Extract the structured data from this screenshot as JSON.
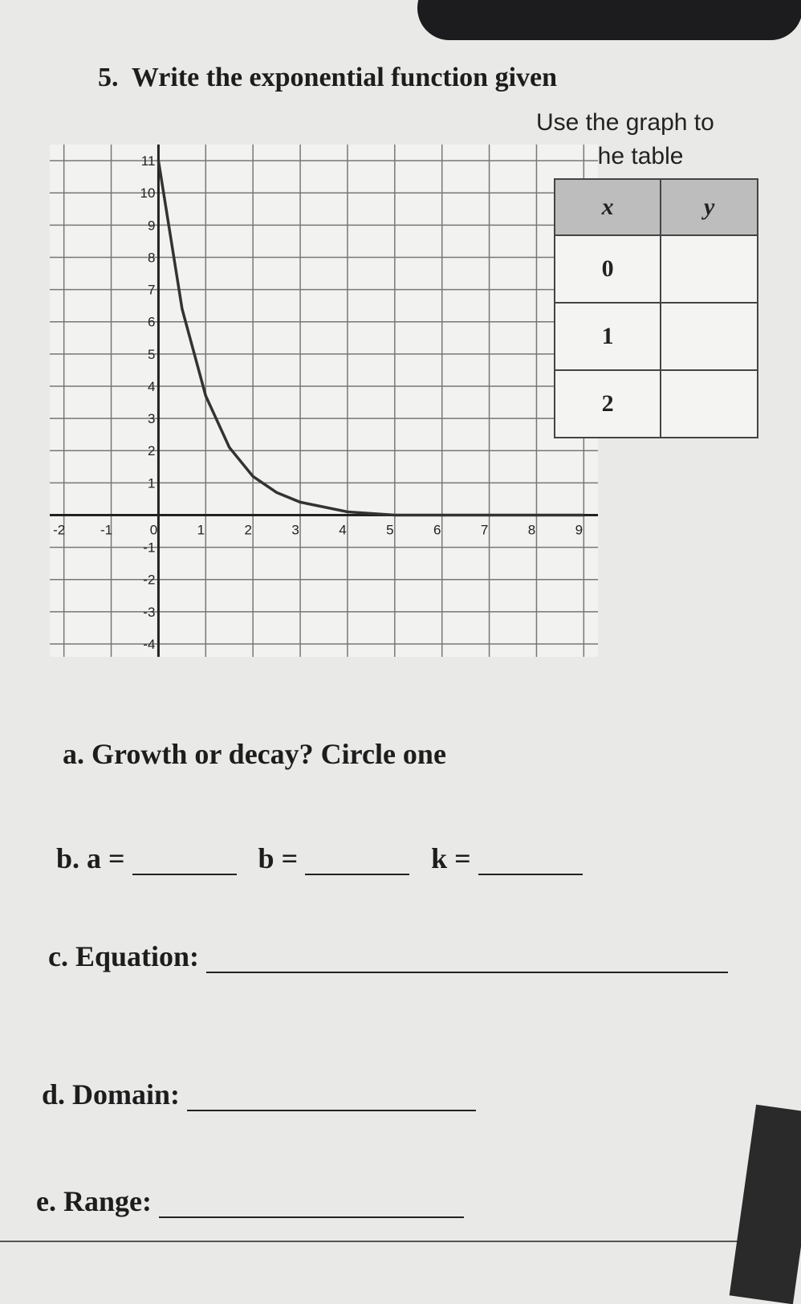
{
  "question": {
    "number": "5.",
    "text": "Write the exponential function given"
  },
  "instruction": [
    "Use the graph to",
    "fill in the table"
  ],
  "graph": {
    "type": "line",
    "x": [
      0,
      0.5,
      1,
      1.5,
      2,
      2.5,
      3,
      4,
      5,
      6,
      7,
      8,
      9
    ],
    "values": [
      11,
      6.4,
      3.7,
      2.1,
      1.2,
      0.7,
      0.4,
      0.1,
      0,
      0,
      0,
      0,
      0
    ],
    "color": "#333333",
    "xlim": [
      -2.3,
      9.3
    ],
    "ylim": [
      -4.4,
      11.5
    ],
    "xticks": [
      -2,
      -1,
      0,
      1,
      2,
      3,
      4,
      5,
      6,
      7,
      8,
      9
    ],
    "yticks": [
      -4,
      -3,
      -2,
      -1,
      1,
      2,
      3,
      4,
      5,
      6,
      7,
      8,
      9,
      10,
      11
    ],
    "grid": true
  },
  "table": {
    "header": [
      "x",
      "y"
    ],
    "rows": [
      [
        "0"
      ],
      [
        "1"
      ],
      [
        "2"
      ]
    ]
  },
  "parts": {
    "a": "a.  Growth or decay? Circle one",
    "b": [
      "b.  a =",
      "b =",
      "k ="
    ],
    "c": "c.  Equation:",
    "d": "d.  Domain:",
    "e": "e.  Range:"
  }
}
